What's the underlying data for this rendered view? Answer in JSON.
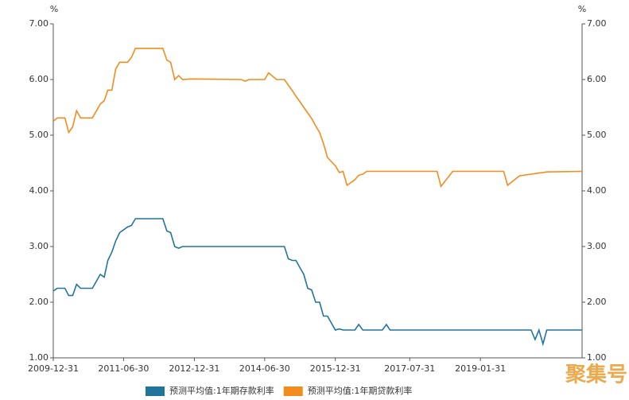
{
  "chart_data": {
    "type": "line",
    "y_label": "%",
    "y2_label": "%",
    "x": [
      "2009-12-31",
      "2010-01-31",
      "2010-03-31",
      "2010-04-30",
      "2010-05-31",
      "2010-06-30",
      "2010-07-31",
      "2010-10-31",
      "2010-12-31",
      "2011-01-31",
      "2011-02-28",
      "2011-03-31",
      "2011-04-30",
      "2011-05-31",
      "2011-07-31",
      "2011-08-31",
      "2011-09-30",
      "2012-04-30",
      "2012-05-31",
      "2012-06-30",
      "2012-07-31",
      "2012-08-31",
      "2012-09-30",
      "2012-11-30",
      "2013-12-31",
      "2014-01-31",
      "2014-02-28",
      "2014-06-30",
      "2014-07-31",
      "2014-09-30",
      "2014-11-30",
      "2014-12-31",
      "2015-01-31",
      "2015-02-28",
      "2015-03-31",
      "2015-04-30",
      "2015-05-31",
      "2015-06-30",
      "2015-07-31",
      "2015-08-31",
      "2015-09-30",
      "2015-10-31",
      "2015-12-31",
      "2016-01-31",
      "2016-02-29",
      "2016-03-31",
      "2016-05-31",
      "2016-06-30",
      "2016-07-31",
      "2016-08-31",
      "2016-12-31",
      "2017-01-31",
      "2017-02-28",
      "2018-02-28",
      "2018-03-31",
      "2018-06-30",
      "2019-07-31",
      "2019-08-31",
      "2019-11-30",
      "2020-02-29",
      "2020-03-31",
      "2020-04-30",
      "2020-05-31",
      "2020-06-30",
      "2021-03-31"
    ],
    "series": [
      {
        "name": "预测平均值:1年期存款利率",
        "color": "#21759b",
        "values": [
          2.2,
          2.25,
          2.25,
          2.12,
          2.12,
          2.32,
          2.25,
          2.25,
          2.5,
          2.45,
          2.75,
          2.9,
          3.1,
          3.25,
          3.35,
          3.38,
          3.5,
          3.5,
          3.28,
          3.25,
          3.0,
          2.97,
          3.0,
          3.0,
          3.0,
          3.0,
          3.0,
          3.0,
          3.0,
          3.0,
          3.0,
          2.78,
          2.75,
          2.75,
          2.62,
          2.5,
          2.25,
          2.22,
          2.0,
          2.0,
          1.75,
          1.75,
          1.5,
          1.52,
          1.5,
          1.5,
          1.5,
          1.6,
          1.5,
          1.5,
          1.5,
          1.6,
          1.5,
          1.5,
          1.5,
          1.5,
          1.5,
          1.5,
          1.5,
          1.5,
          1.33,
          1.5,
          1.25,
          1.5,
          1.5
        ]
      },
      {
        "name": "预测平均值:1年期贷款利率",
        "color": "#f28c1e",
        "values": [
          5.25,
          5.31,
          5.31,
          5.05,
          5.15,
          5.44,
          5.31,
          5.31,
          5.56,
          5.62,
          5.81,
          5.81,
          6.19,
          6.31,
          6.31,
          6.4,
          6.56,
          6.56,
          6.35,
          6.31,
          6.0,
          6.07,
          6.0,
          6.01,
          6.0,
          5.97,
          6.0,
          6.0,
          6.12,
          6.0,
          6.0,
          5.9,
          5.8,
          5.7,
          5.6,
          5.5,
          5.4,
          5.3,
          5.17,
          5.05,
          4.85,
          4.6,
          4.45,
          4.33,
          4.35,
          4.1,
          4.2,
          4.28,
          4.3,
          4.35,
          4.35,
          4.35,
          4.35,
          4.35,
          4.08,
          4.35,
          4.35,
          4.1,
          4.27,
          4.3,
          4.31,
          4.32,
          4.33,
          4.34,
          4.35
        ]
      }
    ],
    "xlim": [
      "2009-12-31",
      "2021-03-31"
    ],
    "xticks": [
      "2009-12-31",
      "2011-06-30",
      "2012-12-31",
      "2014-06-30",
      "2015-12-31",
      "2017-07-31",
      "2019-01-31"
    ],
    "ylim": [
      1,
      7
    ],
    "yticks": [
      {
        "value": 1,
        "label": "1.00"
      },
      {
        "value": 2,
        "label": "2.00"
      },
      {
        "value": 3,
        "label": "3.00"
      },
      {
        "value": 4,
        "label": "4.00"
      },
      {
        "value": 5,
        "label": "5.00"
      },
      {
        "value": 6,
        "label": "6.00"
      },
      {
        "value": 7,
        "label": "7.00"
      }
    ],
    "y2lim": [
      1,
      7
    ],
    "y2ticks": [
      {
        "value": 1,
        "label": "1.00"
      },
      {
        "value": 2,
        "label": "2.00"
      },
      {
        "value": 3,
        "label": "3.00"
      },
      {
        "value": 4,
        "label": "4.00"
      },
      {
        "value": 5,
        "label": "5.00"
      },
      {
        "value": 6,
        "label": "6.00"
      },
      {
        "value": 7,
        "label": "7.00"
      }
    ],
    "grid": false,
    "legend": "bottom",
    "watermark": "聚集号"
  }
}
